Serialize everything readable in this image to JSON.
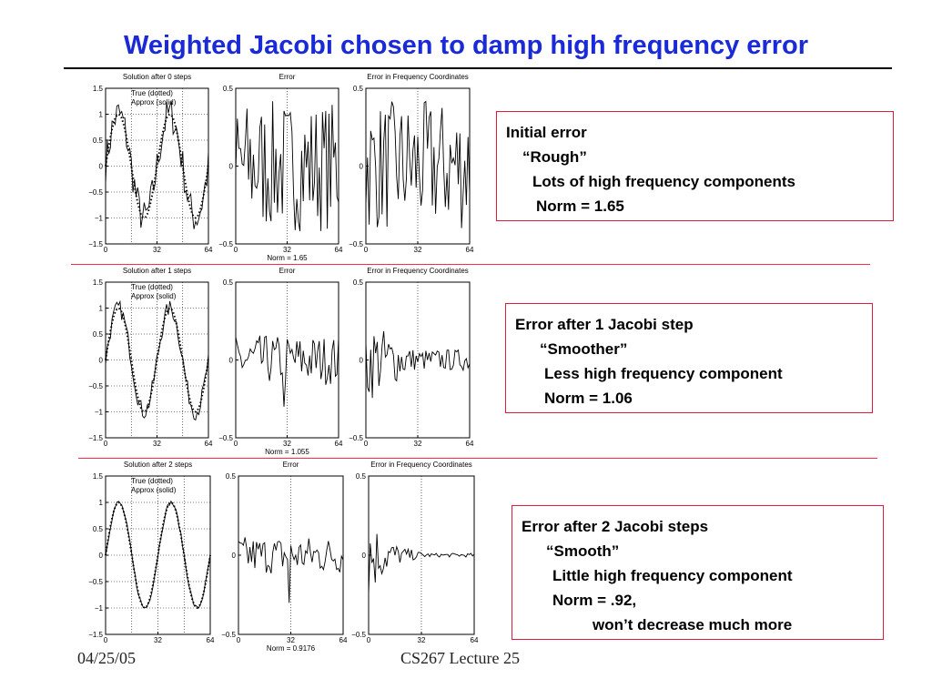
{
  "slide": {
    "title": "Weighted Jacobi chosen to damp high frequency error",
    "footer_date": "04/25/05",
    "footer_course": "CS267 Lecture 25"
  },
  "figure": {
    "solution_legend": {
      "line1": "True (dotted)",
      "line2": "Approx (solid)"
    },
    "x_ticks": [
      "0",
      "32",
      "64"
    ],
    "solution_y_ticks": [
      "1.5",
      "1",
      "0.5",
      "0",
      "−0.5",
      "−1",
      "−1.5"
    ],
    "error_y_ticks": [
      "0.5",
      "0",
      "−0.5"
    ],
    "rows": [
      {
        "solution_title": "Solution after 0 steps",
        "error_title": "Error",
        "freq_title": "Error in Frequency Coordinates",
        "norm_label": "Norm = 1.65",
        "box": {
          "lines": [
            "Initial error",
            "“Rough”",
            "Lots of high frequency components",
            "Norm = 1.65"
          ]
        }
      },
      {
        "solution_title": "Solution after 1 steps",
        "error_title": "Error",
        "freq_title": "Error in Frequency Coordinates",
        "norm_label": "Norm = 1.055",
        "box": {
          "lines": [
            "Error after 1 Jacobi step",
            "“Smoother”",
            "Less high frequency component",
            "Norm = 1.06"
          ]
        }
      },
      {
        "solution_title": "Solution after 2 steps",
        "error_title": "Error",
        "freq_title": "Error in Frequency Coordinates",
        "norm_label": "Norm = 0.9176",
        "box": {
          "lines": [
            "Error after 2 Jacobi steps",
            "“Smooth”",
            "Little high frequency component",
            "Norm = .92,",
            "won’t decrease much more"
          ]
        }
      }
    ]
  },
  "colors": {
    "title": "#1a2ad6",
    "divider": "#ff2a4a",
    "box_border": "#e3193d"
  }
}
